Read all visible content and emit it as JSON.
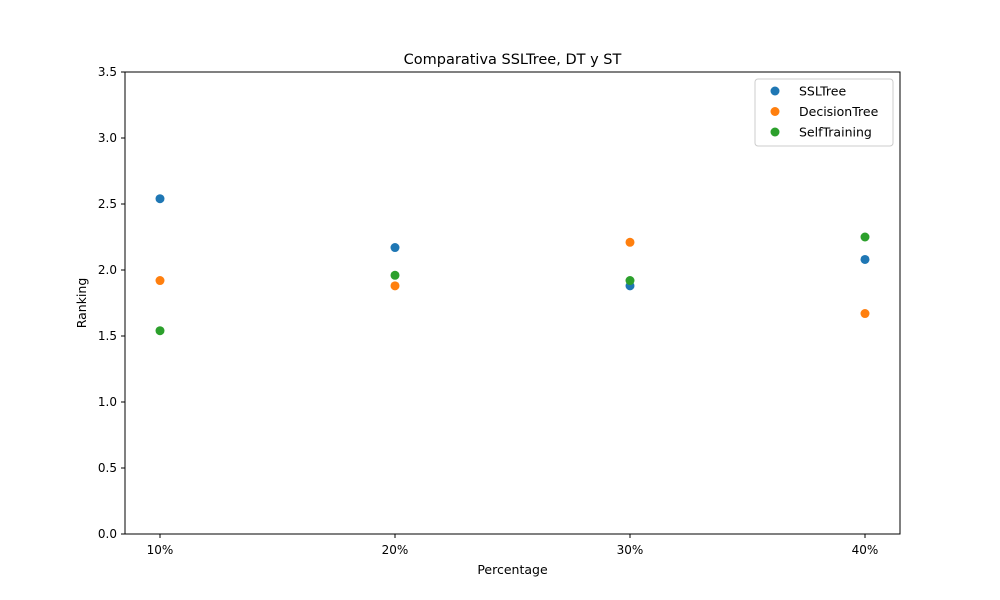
{
  "chart_data": {
    "type": "scatter",
    "title": "Comparativa SSLTree, DT y ST",
    "xlabel": "Percentage",
    "ylabel": "Ranking",
    "categories": [
      "10%",
      "20%",
      "30%",
      "40%"
    ],
    "ylim": [
      0,
      3.5
    ],
    "yticks": [
      "0.0",
      "0.5",
      "1.0",
      "1.5",
      "2.0",
      "2.5",
      "3.0",
      "3.5"
    ],
    "grid": false,
    "legend_position": "top-right",
    "series": [
      {
        "name": "SSLTree",
        "color": "#1f77b4",
        "values": [
          2.54,
          2.17,
          1.88,
          2.08
        ]
      },
      {
        "name": "DecisionTree",
        "color": "#ff7f0e",
        "values": [
          1.92,
          1.88,
          2.21,
          1.67
        ]
      },
      {
        "name": "SelfTraining",
        "color": "#2ca02c",
        "values": [
          1.54,
          1.96,
          1.92,
          2.25
        ]
      }
    ]
  }
}
